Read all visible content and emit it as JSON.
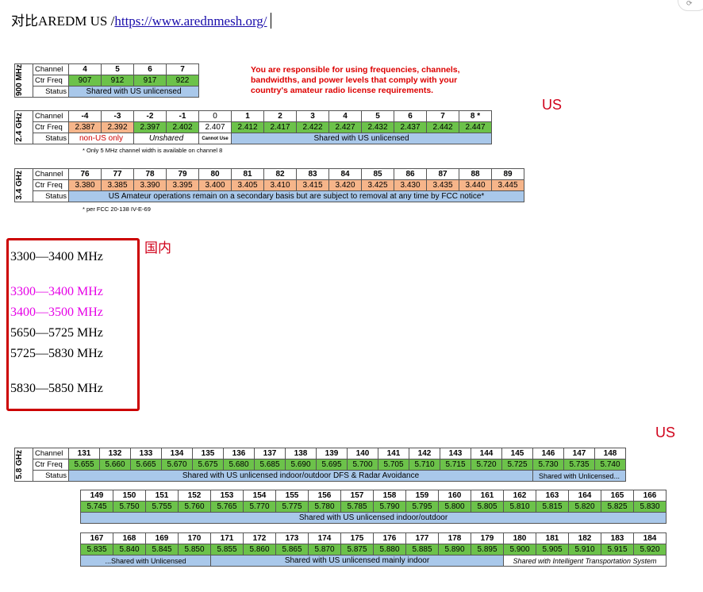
{
  "header": {
    "prefix": "对比AREDM US /",
    "link": "https://www.arednmesh.org/"
  },
  "labels": {
    "channel": "Channel",
    "ctr_freq": "Ctr Freq",
    "status": "Status"
  },
  "band900": {
    "name": "900 MHz",
    "channels": [
      "4",
      "5",
      "6",
      "7"
    ],
    "freqs": [
      "907",
      "912",
      "917",
      "922"
    ],
    "status": "Shared with US unlicensed"
  },
  "warning": "You are responsible for using frequencies, channels, bandwidths, and power levels that comply with your country's amateur radio license requirements.",
  "us_label": "US",
  "band24": {
    "name": "2.4 GHz",
    "channels": [
      "-4",
      "-3",
      "-2",
      "-1",
      "0",
      "1",
      "2",
      "3",
      "4",
      "5",
      "6",
      "7",
      "8 *"
    ],
    "freqs": [
      "2.387",
      "2.392",
      "2.397",
      "2.402",
      "2.407",
      "2.412",
      "2.417",
      "2.422",
      "2.427",
      "2.432",
      "2.437",
      "2.442",
      "2.447"
    ],
    "status_nonus": "non-US only",
    "status_unshared": "Unshared",
    "status_cannot": "Cannot Use",
    "status_shared": "Shared with US unlicensed",
    "note": "* Only 5 MHz channel width is available on channel 8"
  },
  "band34": {
    "name": "3.4 GHz",
    "channels": [
      "76",
      "77",
      "78",
      "79",
      "80",
      "81",
      "82",
      "83",
      "84",
      "85",
      "86",
      "87",
      "88",
      "89"
    ],
    "freqs": [
      "3.380",
      "3.385",
      "3.390",
      "3.395",
      "3.400",
      "3.405",
      "3.410",
      "3.415",
      "3.420",
      "3.425",
      "3.430",
      "3.435",
      "3.440",
      "3.445"
    ],
    "status": "US Amateur operations remain on a secondary basis but are subject to removal at any time by FCC notice*",
    "note": "* per FCC 20-138 IV-E-69"
  },
  "domestic": {
    "label": "国内",
    "ranges": [
      "3300—3400 MHz",
      "3300—3400 MHz",
      "3400—3500 MHz",
      "5650—5725 MHz",
      "5725—5830 MHz",
      "5830—5850 MHz"
    ]
  },
  "band58": {
    "name": "5.8 GHz",
    "row1": {
      "channels": [
        "131",
        "132",
        "133",
        "134",
        "135",
        "136",
        "137",
        "138",
        "139",
        "140",
        "141",
        "142",
        "143",
        "144",
        "145",
        "146",
        "147",
        "148"
      ],
      "freqs": [
        "5.655",
        "5.660",
        "5.665",
        "5.670",
        "5.675",
        "5.680",
        "5.685",
        "5.690",
        "5.695",
        "5.700",
        "5.705",
        "5.710",
        "5.715",
        "5.720",
        "5.725",
        "5.730",
        "5.735",
        "5.740"
      ],
      "status_a": "Shared with US unlicensed indoor/outdoor DFS & Radar Avoidance",
      "status_b": "Shared with Unlicensed..."
    },
    "row2": {
      "channels": [
        "149",
        "150",
        "151",
        "152",
        "153",
        "154",
        "155",
        "156",
        "157",
        "158",
        "159",
        "160",
        "161",
        "162",
        "163",
        "164",
        "165",
        "166"
      ],
      "freqs": [
        "5.745",
        "5.750",
        "5.755",
        "5.760",
        "5.765",
        "5.770",
        "5.775",
        "5.780",
        "5.785",
        "5.790",
        "5.795",
        "5.800",
        "5.805",
        "5.810",
        "5.815",
        "5.820",
        "5.825",
        "5.830"
      ],
      "status": "Shared with US unlicensed indoor/outdoor"
    },
    "row3": {
      "channels": [
        "167",
        "168",
        "169",
        "170",
        "171",
        "172",
        "173",
        "174",
        "175",
        "176",
        "177",
        "178",
        "179",
        "180",
        "181",
        "182",
        "183",
        "184"
      ],
      "freqs": [
        "5.835",
        "5.840",
        "5.845",
        "5.850",
        "5.855",
        "5.860",
        "5.865",
        "5.870",
        "5.875",
        "5.880",
        "5.885",
        "5.890",
        "5.895",
        "5.900",
        "5.905",
        "5.910",
        "5.915",
        "5.920"
      ],
      "status_a": "...Shared with Unlicensed",
      "status_b": "Shared with US unlicensed mainly indoor",
      "status_c": "Shared with Intelligent Transportation System"
    }
  }
}
